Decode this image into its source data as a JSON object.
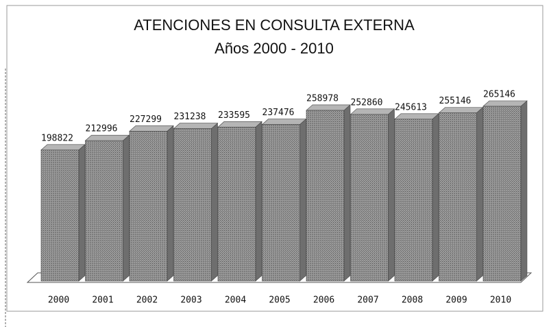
{
  "chart_data": {
    "type": "bar",
    "title": "ATENCIONES EN CONSULTA EXTERNA",
    "subtitle": "Años 2000 - 2010",
    "categories": [
      "2000",
      "2001",
      "2002",
      "2003",
      "2004",
      "2005",
      "2006",
      "2007",
      "2008",
      "2009",
      "2010"
    ],
    "values": [
      198822,
      212996,
      227299,
      231238,
      233595,
      237476,
      258978,
      252860,
      245613,
      255146,
      265146
    ],
    "color": "#8c8c8c"
  }
}
